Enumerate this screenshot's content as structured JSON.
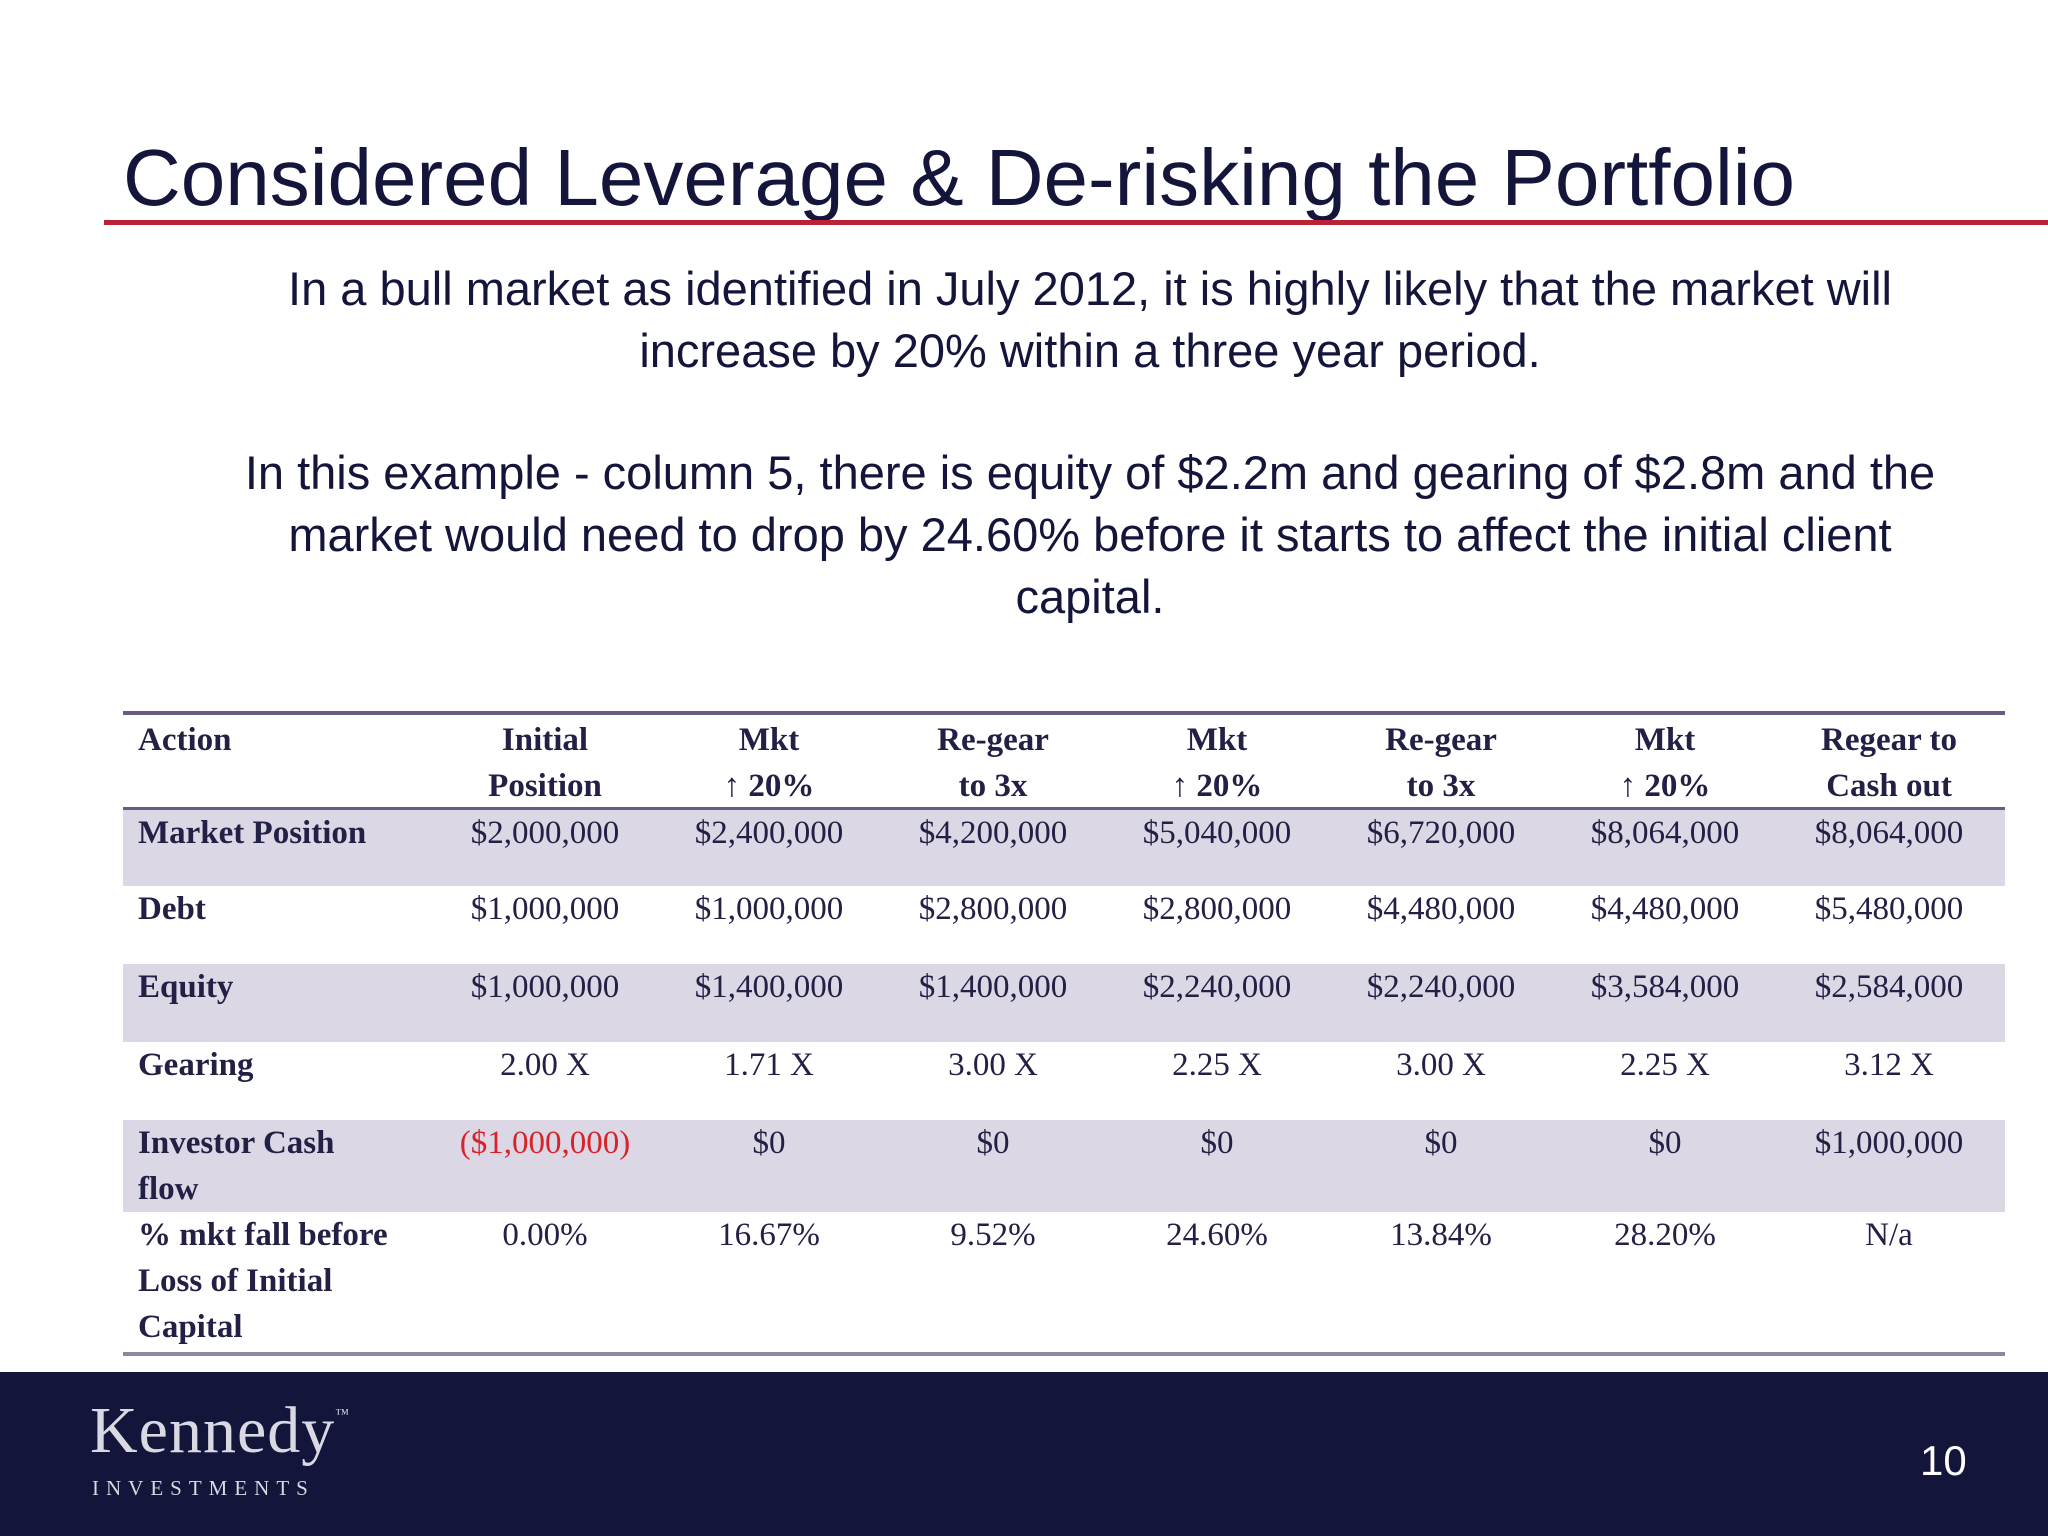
{
  "slide": {
    "title": "Considered Leverage & De-risking the Portfolio",
    "paragraph1_line1": "In a bull market as identified in July 2012, it is highly likely that the market will",
    "paragraph1_line2": "increase by 20% within a three year period.",
    "paragraph2_line1": "In this example - column 5, there is equity of $2.2m and gearing of $2.8m and the",
    "paragraph2_line2": "market would need to drop by 24.60% before it starts to affect the initial client",
    "paragraph2_line3": "capital."
  },
  "table": {
    "header": {
      "action": "Action",
      "columns": [
        {
          "line1": "Initial",
          "line2": "Position"
        },
        {
          "line1": "Mkt",
          "line2": "↑ 20%"
        },
        {
          "line1": "Re-gear",
          "line2": "to 3x"
        },
        {
          "line1": "Mkt",
          "line2": "↑ 20%"
        },
        {
          "line1": "Re-gear",
          "line2": "to 3x"
        },
        {
          "line1": "Mkt",
          "line2": "↑ 20%"
        },
        {
          "line1": "Regear to",
          "line2": "Cash out"
        }
      ]
    },
    "rows": [
      {
        "label_line1": "Market Position",
        "values": [
          "$2,000,000",
          "$2,400,000",
          "$4,200,000",
          "$5,040,000",
          "$6,720,000",
          "$8,064,000",
          "$8,064,000"
        ]
      },
      {
        "label_line1": "Debt",
        "values": [
          "$1,000,000",
          "$1,000,000",
          "$2,800,000",
          "$2,800,000",
          "$4,480,000",
          "$4,480,000",
          "$5,480,000"
        ]
      },
      {
        "label_line1": "Equity",
        "values": [
          "$1,000,000",
          "$1,400,000",
          "$1,400,000",
          "$2,240,000",
          "$2,240,000",
          "$3,584,000",
          "$2,584,000"
        ]
      },
      {
        "label_line1": "Gearing",
        "values": [
          "2.00 X",
          "1.71 X",
          "3.00 X",
          "2.25 X",
          "3.00 X",
          "2.25 X",
          "3.12 X"
        ]
      },
      {
        "label_line1": "Investor Cash",
        "label_line2": "flow",
        "values": [
          "($1,000,000)",
          "$0",
          "$0",
          "$0",
          "$0",
          "$0",
          "$1,000,000"
        ]
      },
      {
        "label_line1": "% mkt fall before",
        "label_line2": "Loss of Initial",
        "label_line3": "Capital",
        "values": [
          "0.00%",
          "16.67%",
          "9.52%",
          "24.60%",
          "13.84%",
          "28.20%",
          "N/a"
        ]
      }
    ],
    "colors": {
      "negative": "#d8232a",
      "shade": "#dcd7e5",
      "rule": "#6b5a85"
    }
  },
  "footer": {
    "logo_name": "Kennedy",
    "logo_tm": "™",
    "logo_sub": "INVESTMENTS",
    "page_number": "10"
  }
}
